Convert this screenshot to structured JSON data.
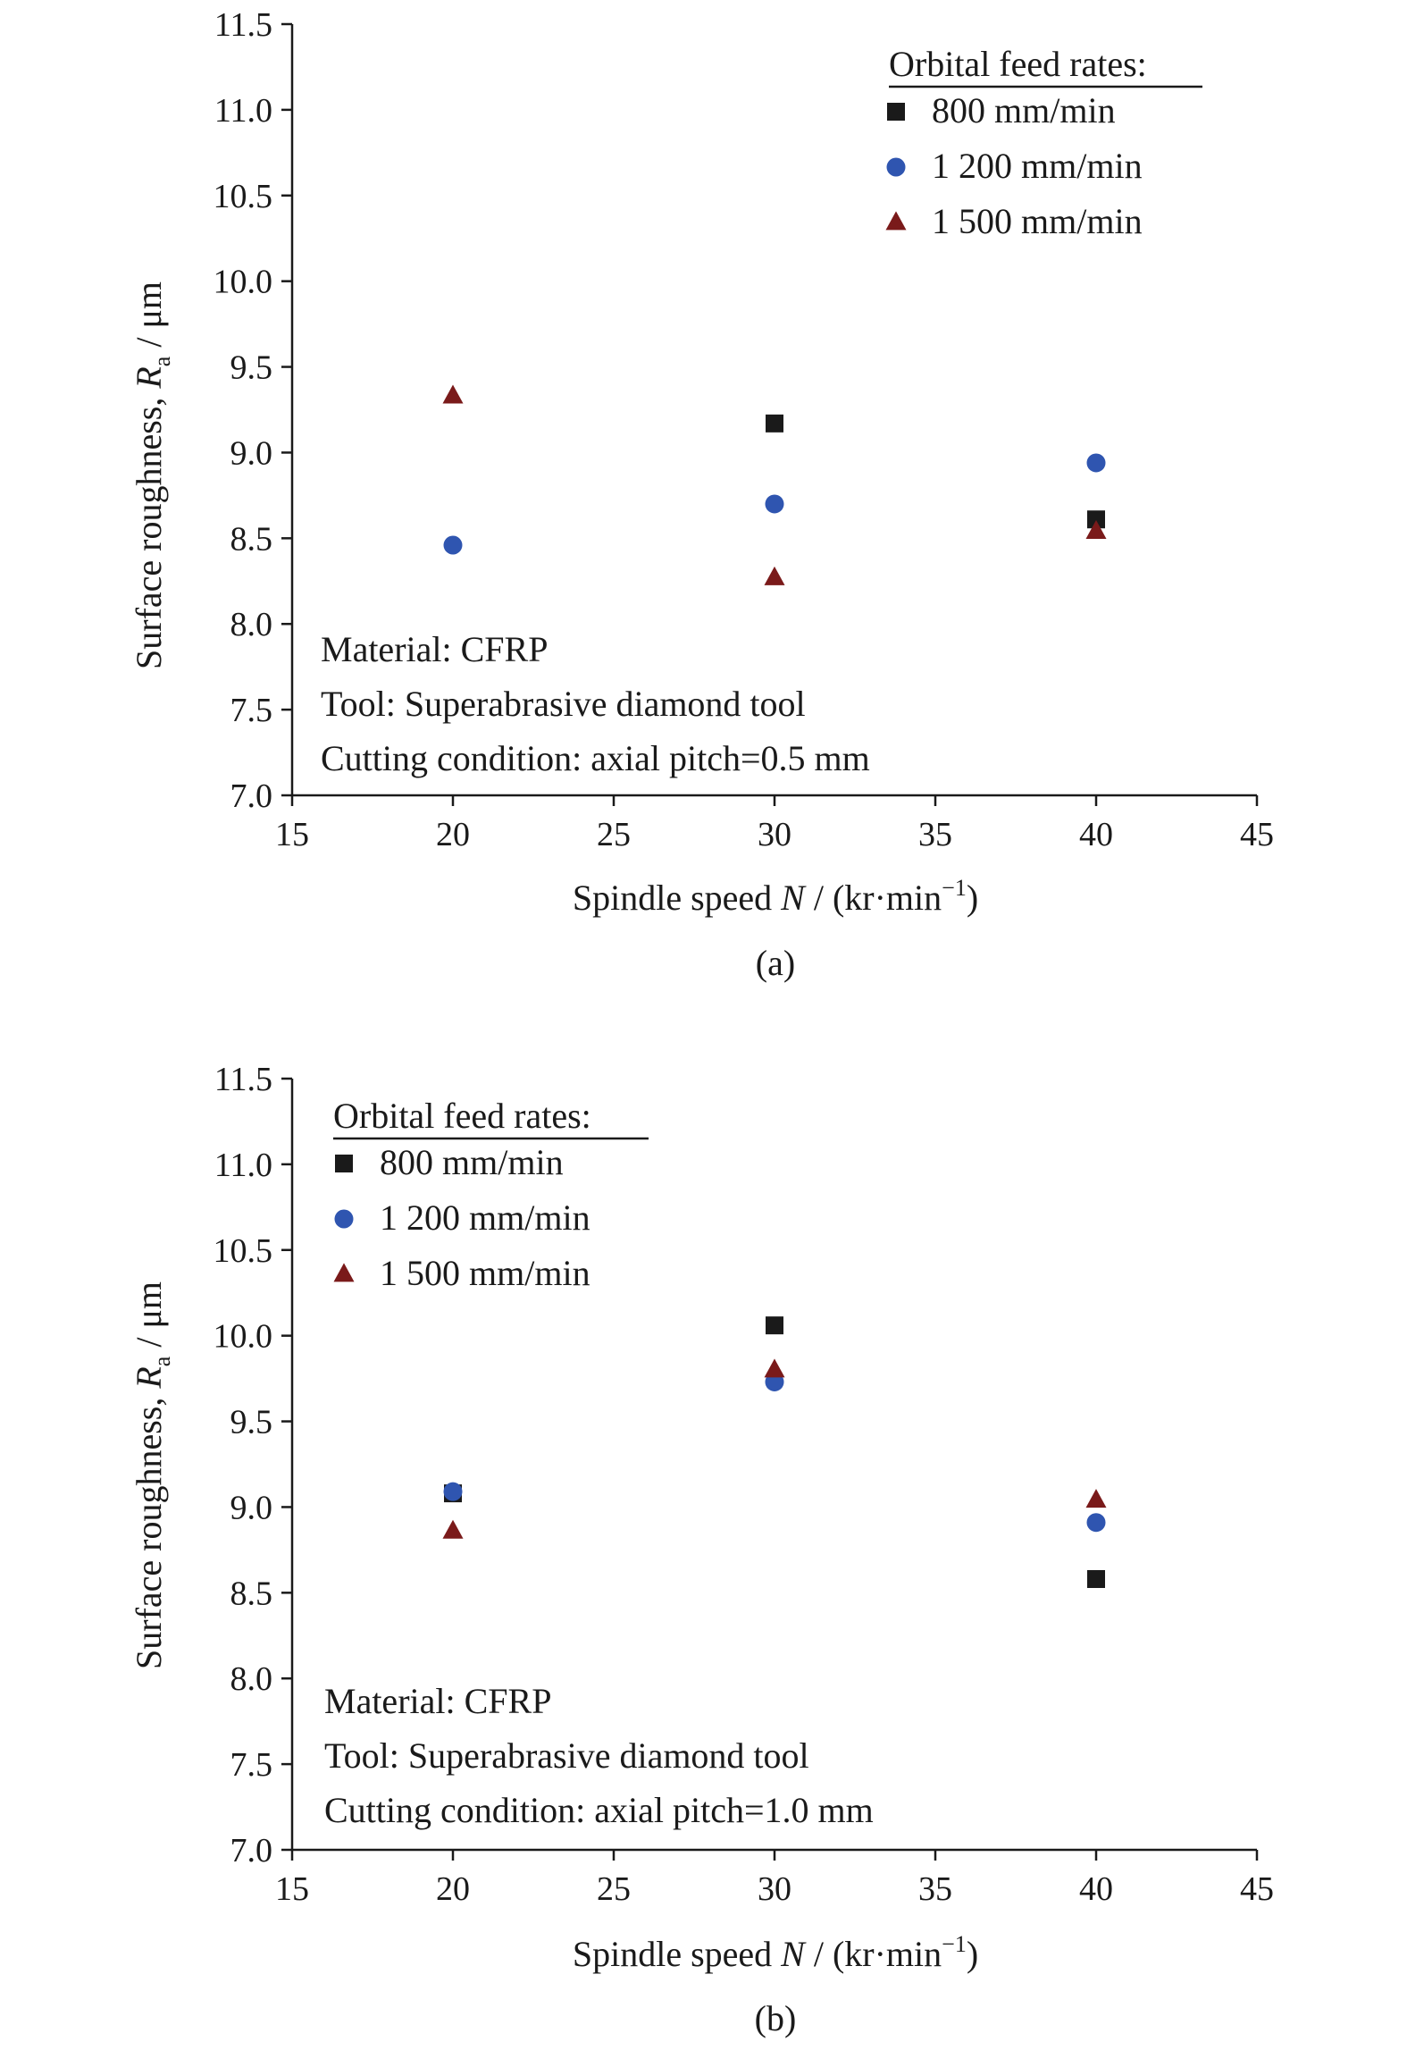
{
  "colors": {
    "800": "#1a1a1a",
    "1200": "#2f55b0",
    "1500": "#7a1a1a"
  },
  "chart_data": [
    {
      "type": "scatter",
      "panel_label": "(a)",
      "xlabel": "Spindle speed N / (kr·min⁻¹)",
      "ylabel": "Surface roughness, Ra / μm",
      "xlim": [
        15,
        45
      ],
      "ylim": [
        7.0,
        11.5
      ],
      "x_ticks": [
        "15",
        "20",
        "25",
        "30",
        "35",
        "40",
        "45"
      ],
      "y_ticks": [
        "7.0",
        "7.5",
        "8.0",
        "8.5",
        "9.0",
        "9.5",
        "10.0",
        "10.5",
        "11.0",
        "11.5"
      ],
      "legend_title": "Orbital feed rates:",
      "legend_position": "top-right",
      "series": [
        {
          "name": "800 mm/min",
          "marker": "square",
          "x": [
            30,
            40
          ],
          "y": [
            9.17,
            8.61
          ]
        },
        {
          "name": "1 200 mm/min",
          "marker": "circle",
          "x": [
            20,
            30,
            40
          ],
          "y": [
            8.46,
            8.7,
            8.94
          ]
        },
        {
          "name": "1 500 mm/min",
          "marker": "triangle",
          "x": [
            20,
            30,
            40
          ],
          "y": [
            9.33,
            8.27,
            8.54
          ]
        }
      ],
      "annotations": [
        "Material: CFRP",
        "Tool: Superabrasive diamond tool",
        "Cutting condition: axial pitch=0.5 mm"
      ]
    },
    {
      "type": "scatter",
      "panel_label": "(b)",
      "xlabel": "Spindle speed N / (kr·min⁻¹)",
      "ylabel": "Surface roughness, Ra / μm",
      "xlim": [
        15,
        45
      ],
      "ylim": [
        7.0,
        11.5
      ],
      "x_ticks": [
        "15",
        "20",
        "25",
        "30",
        "35",
        "40",
        "45"
      ],
      "y_ticks": [
        "7.0",
        "7.5",
        "8.0",
        "8.5",
        "9.0",
        "9.5",
        "10.0",
        "10.5",
        "11.0",
        "11.5"
      ],
      "legend_title": "Orbital feed rates:",
      "legend_position": "top-left",
      "series": [
        {
          "name": "800 mm/min",
          "marker": "square",
          "x": [
            20,
            30,
            40
          ],
          "y": [
            9.08,
            10.06,
            8.58
          ]
        },
        {
          "name": "1 200 mm/min",
          "marker": "circle",
          "x": [
            20,
            30,
            40
          ],
          "y": [
            9.09,
            9.73,
            8.91
          ]
        },
        {
          "name": "1 500 mm/min",
          "marker": "triangle",
          "x": [
            20,
            30,
            40
          ],
          "y": [
            8.86,
            9.8,
            9.04
          ]
        }
      ],
      "annotations": [
        "Material: CFRP",
        "Tool: Superabrasive diamond tool",
        "Cutting condition: axial pitch=1.0 mm"
      ]
    }
  ]
}
